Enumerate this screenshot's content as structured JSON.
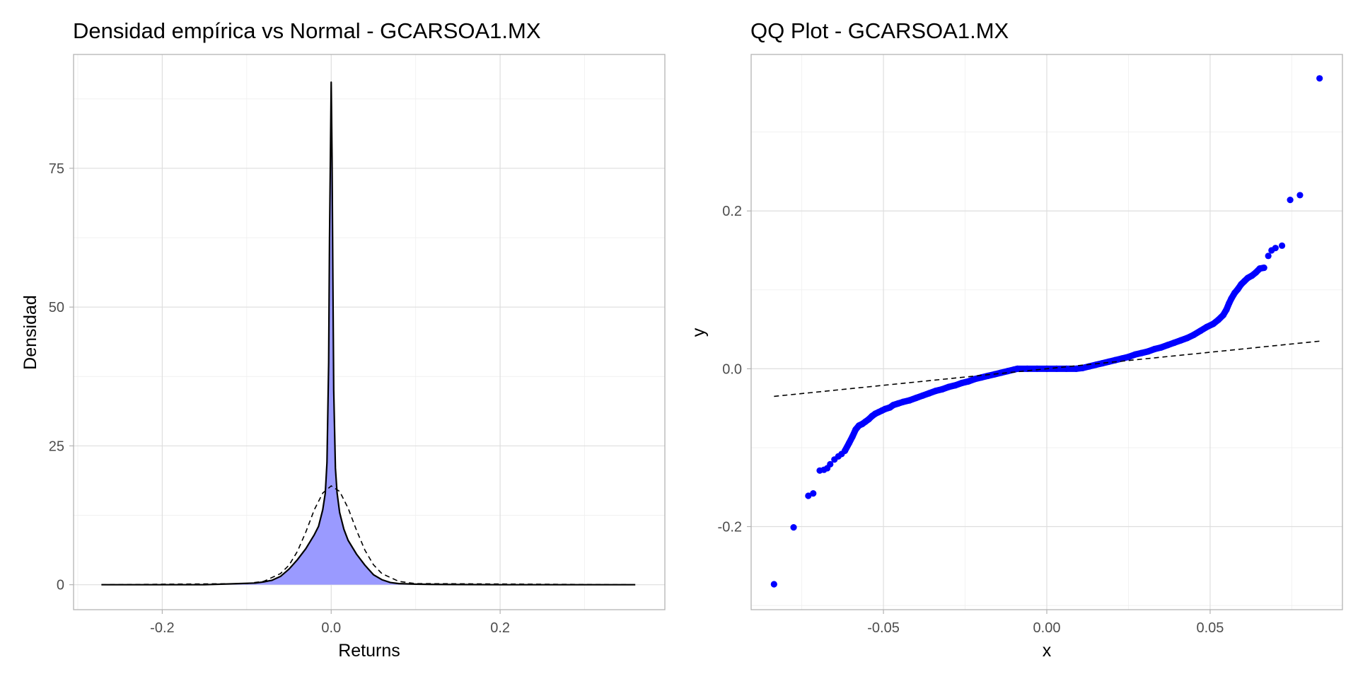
{
  "colors": {
    "density_fill": "#9a9aff",
    "density_line": "#000000",
    "normal_line": "#000000",
    "qq_points": "#0000ff",
    "qq_line": "#000000"
  },
  "chart_data": [
    {
      "type": "area",
      "title": "Densidad empírica vs Normal - GCARSOA1.MX",
      "xlabel": "Returns",
      "ylabel": "Densidad",
      "xlim": [
        -0.305,
        0.395
      ],
      "ylim": [
        -4.5,
        95.5
      ],
      "x_ticks": [
        -0.2,
        0.0,
        0.2
      ],
      "x_tick_labels": [
        "-0.2",
        "0.0",
        "0.2"
      ],
      "y_ticks": [
        0,
        25,
        50,
        75
      ],
      "y_tick_labels": [
        "0",
        "25",
        "50",
        "75"
      ],
      "grid": true,
      "series": [
        {
          "kind": "empirical-density",
          "x": [
            -0.272,
            -0.15,
            -0.11,
            -0.09,
            -0.08,
            -0.07,
            -0.06,
            -0.05,
            -0.04,
            -0.03,
            -0.02,
            -0.015,
            -0.01,
            -0.007,
            -0.005,
            -0.003,
            -0.002,
            -0.001,
            0.0,
            0.001,
            0.002,
            0.003,
            0.005,
            0.007,
            0.01,
            0.015,
            0.02,
            0.03,
            0.04,
            0.05,
            0.06,
            0.07,
            0.08,
            0.1,
            0.12,
            0.2,
            0.36
          ],
          "y": [
            0,
            0,
            0.2,
            0.3,
            0.5,
            0.8,
            1.5,
            2.8,
            4.5,
            6.5,
            9.0,
            10.5,
            13.5,
            16.5,
            22.0,
            40.0,
            62.0,
            76.0,
            90.5,
            77.0,
            55.0,
            35.0,
            21.0,
            16.5,
            13.0,
            10.0,
            8.0,
            5.5,
            3.5,
            1.8,
            0.9,
            0.4,
            0.2,
            0.1,
            0.05,
            0,
            0
          ]
        },
        {
          "kind": "normal-density",
          "x": [
            -0.272,
            -0.1,
            -0.08,
            -0.06,
            -0.05,
            -0.04,
            -0.03,
            -0.02,
            -0.01,
            0.0,
            0.01,
            0.02,
            0.03,
            0.04,
            0.05,
            0.06,
            0.08,
            0.1,
            0.36
          ],
          "y": [
            0,
            0.2,
            0.6,
            2.0,
            3.5,
            6.0,
            9.5,
            13.5,
            16.5,
            17.8,
            16.8,
            13.8,
            9.8,
            6.2,
            3.6,
            2.0,
            0.6,
            0.2,
            0
          ]
        }
      ]
    },
    {
      "type": "scatter",
      "title": "QQ Plot - GCARSOA1.MX",
      "xlabel": "x",
      "ylabel": "y",
      "xlim": [
        -0.0905,
        0.0905
      ],
      "ylim": [
        -0.3053,
        0.3983
      ],
      "x_ticks": [
        -0.05,
        0.0,
        0.05
      ],
      "x_tick_labels": [
        "-0.05",
        "0.00",
        "0.05"
      ],
      "y_ticks": [
        -0.2,
        0.0,
        0.2
      ],
      "y_tick_labels": [
        "-0.2",
        "0.0",
        "0.2"
      ],
      "grid": true,
      "points": [
        [
          -0.0835,
          -0.273
        ],
        [
          -0.0775,
          -0.201
        ],
        [
          -0.073,
          -0.161
        ],
        [
          -0.0715,
          -0.158
        ],
        [
          -0.0695,
          -0.129
        ],
        [
          -0.0682,
          -0.128
        ],
        [
          -0.0672,
          -0.126
        ],
        [
          -0.0663,
          -0.121
        ],
        [
          -0.065,
          -0.115
        ],
        [
          -0.0638,
          -0.111
        ],
        [
          -0.0628,
          -0.108
        ],
        [
          -0.0618,
          -0.104
        ],
        [
          -0.0605,
          -0.094
        ],
        [
          -0.0595,
          -0.086
        ],
        [
          -0.0585,
          -0.077
        ],
        [
          -0.0575,
          -0.072
        ],
        [
          -0.0565,
          -0.07
        ],
        [
          -0.0555,
          -0.067
        ],
        [
          -0.0545,
          -0.064
        ],
        [
          -0.0535,
          -0.06
        ],
        [
          -0.0525,
          -0.057
        ],
        [
          -0.0515,
          -0.055
        ],
        [
          -0.0505,
          -0.053
        ],
        [
          -0.0495,
          -0.051
        ],
        [
          -0.048,
          -0.049
        ],
        [
          -0.047,
          -0.046
        ],
        [
          -0.0455,
          -0.044
        ],
        [
          -0.044,
          -0.042
        ],
        [
          -0.042,
          -0.04
        ],
        [
          -0.04,
          -0.037
        ],
        [
          -0.038,
          -0.034
        ],
        [
          -0.036,
          -0.031
        ],
        [
          -0.034,
          -0.028
        ],
        [
          -0.032,
          -0.026
        ],
        [
          -0.03,
          -0.023
        ],
        [
          -0.028,
          -0.021
        ],
        [
          -0.026,
          -0.018
        ],
        [
          -0.024,
          -0.016
        ],
        [
          -0.022,
          -0.013
        ],
        [
          -0.02,
          -0.011
        ],
        [
          -0.018,
          -0.009
        ],
        [
          -0.016,
          -0.007
        ],
        [
          -0.014,
          -0.005
        ],
        [
          -0.012,
          -0.003
        ],
        [
          -0.01,
          -0.001
        ],
        [
          -0.009,
          0.0
        ],
        [
          -0.006,
          0.0
        ],
        [
          -0.003,
          0.0
        ],
        [
          0.0,
          0.0
        ],
        [
          0.003,
          0.0
        ],
        [
          0.006,
          0.0
        ],
        [
          0.009,
          0.0
        ],
        [
          0.011,
          0.001
        ],
        [
          0.013,
          0.003
        ],
        [
          0.015,
          0.005
        ],
        [
          0.017,
          0.007
        ],
        [
          0.019,
          0.009
        ],
        [
          0.021,
          0.011
        ],
        [
          0.023,
          0.013
        ],
        [
          0.025,
          0.015
        ],
        [
          0.027,
          0.018
        ],
        [
          0.029,
          0.02
        ],
        [
          0.031,
          0.022
        ],
        [
          0.033,
          0.025
        ],
        [
          0.035,
          0.027
        ],
        [
          0.037,
          0.03
        ],
        [
          0.039,
          0.033
        ],
        [
          0.041,
          0.036
        ],
        [
          0.043,
          0.039
        ],
        [
          0.045,
          0.043
        ],
        [
          0.047,
          0.048
        ],
        [
          0.049,
          0.053
        ],
        [
          0.051,
          0.057
        ],
        [
          0.0525,
          0.062
        ],
        [
          0.054,
          0.068
        ],
        [
          0.055,
          0.075
        ],
        [
          0.0558,
          0.083
        ],
        [
          0.0565,
          0.089
        ],
        [
          0.0575,
          0.096
        ],
        [
          0.0585,
          0.101
        ],
        [
          0.0595,
          0.107
        ],
        [
          0.0605,
          0.111
        ],
        [
          0.0615,
          0.115
        ],
        [
          0.0628,
          0.118
        ],
        [
          0.064,
          0.122
        ],
        [
          0.0652,
          0.127
        ],
        [
          0.0665,
          0.128
        ],
        [
          0.0678,
          0.143
        ],
        [
          0.0688,
          0.15
        ],
        [
          0.07,
          0.153
        ],
        [
          0.072,
          0.156
        ],
        [
          0.0745,
          0.214
        ],
        [
          0.0775,
          0.22
        ],
        [
          0.0835,
          0.368
        ]
      ],
      "line": {
        "x": [
          -0.0835,
          0.0835
        ],
        "y": [
          -0.035,
          0.035
        ]
      }
    }
  ]
}
